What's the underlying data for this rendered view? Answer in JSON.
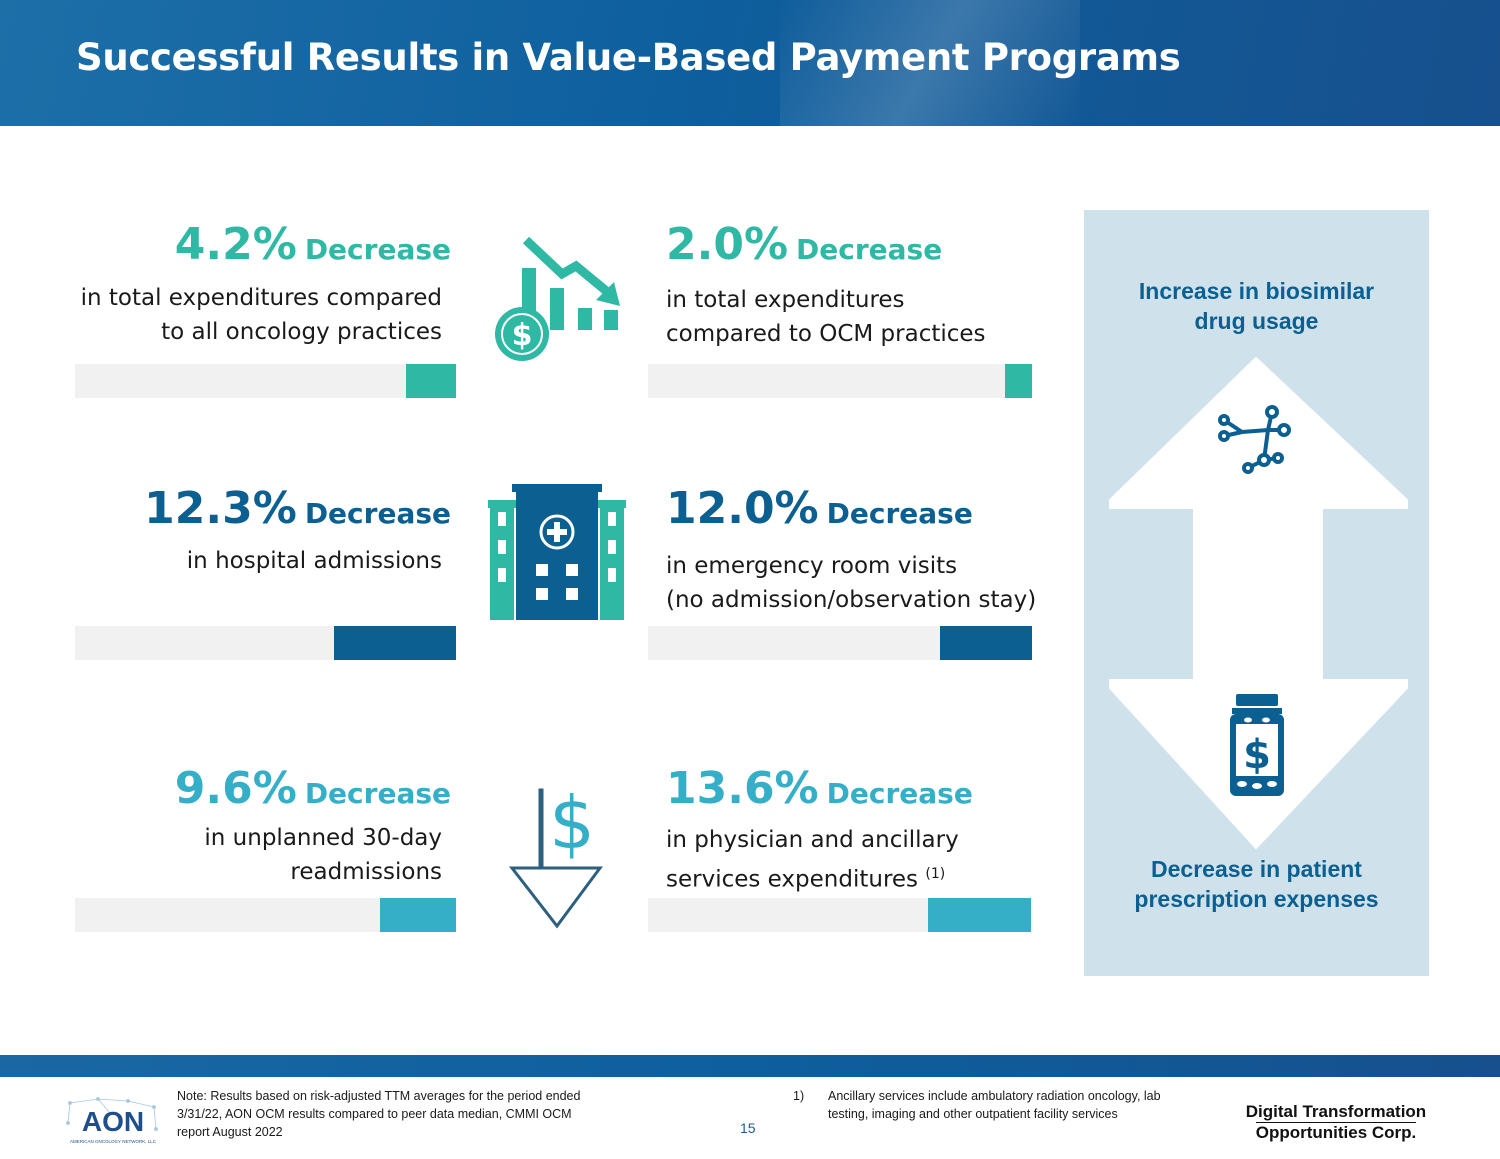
{
  "title": "Successful Results in Value-Based Payment Programs",
  "metrics": [
    {
      "pct": "4.2%",
      "word": "Decrease",
      "desc": [
        "in total expenditures compared",
        "to all oncology practices"
      ],
      "color": "#2fb9a5",
      "fill_fraction": 0.13
    },
    {
      "pct": "2.0%",
      "word": "Decrease",
      "desc": [
        "in total expenditures",
        "compared to OCM practices"
      ],
      "color": "#2fb9a5",
      "fill_fraction": 0.07
    },
    {
      "pct": "12.3%",
      "word": "Decrease",
      "desc": [
        "in hospital admissions"
      ],
      "color": "#0b5f91",
      "fill_fraction": 0.32
    },
    {
      "pct": "12.0%",
      "word": "Decrease",
      "desc": [
        "in emergency room visits",
        "(no admission/observation stay)"
      ],
      "color": "#0b5f91",
      "fill_fraction": 0.24
    },
    {
      "pct": "9.6%",
      "word": "Decrease",
      "desc": [
        "in unplanned 30-day",
        "readmissions"
      ],
      "color": "#35aec8",
      "fill_fraction": 0.2
    },
    {
      "pct": "13.6%",
      "word": "Decrease",
      "desc": [
        "in physician and ancillary",
        "services expenditures"
      ],
      "footnote_ref": "(1)",
      "color": "#35aec8",
      "fill_fraction": 0.27
    }
  ],
  "side_panel": {
    "top_text": [
      "Increase in biosimilar",
      "drug usage"
    ],
    "bottom_text": [
      "Decrease in patient",
      "prescription expenses"
    ]
  },
  "icons": [
    "declining-cost-chart-icon",
    "hospital-icon",
    "dollar-down-arrow-icon",
    "molecule-icon",
    "pill-bottle-dollar-icon"
  ],
  "footer": {
    "note": [
      "Note: Results based on risk-adjusted TTM averages for the period ended",
      "3/31/22, AON OCM results compared to peer data median, CMMI OCM",
      "report August 2022"
    ],
    "footnote_num": "1)",
    "footnote": [
      "Ancillary services include ambulatory radiation oncology, lab",
      "testing, imaging and other outpatient facility services"
    ],
    "page": "15",
    "logo_text": "AON",
    "logo_sub": "AMERICAN ONCOLOGY NETWORK, LLC",
    "company": [
      "Digital Transformation",
      "Opportunities Corp."
    ]
  }
}
